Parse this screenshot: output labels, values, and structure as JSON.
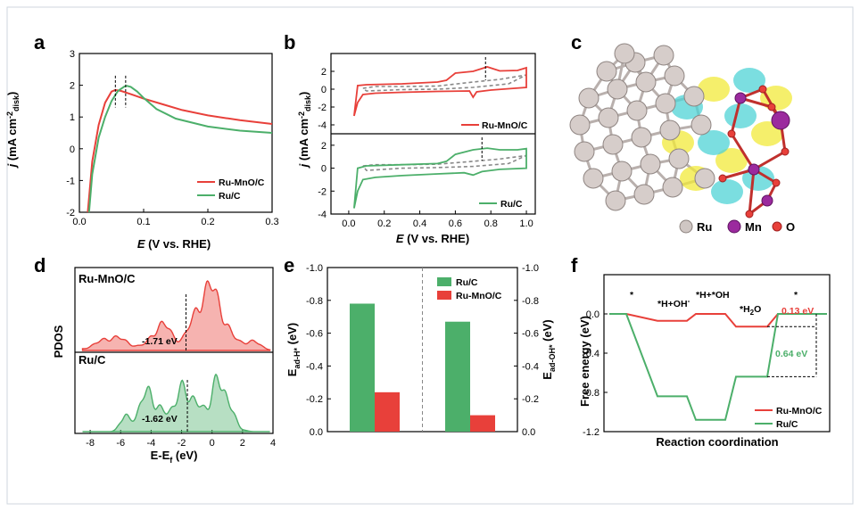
{
  "colors": {
    "red": "#e8403a",
    "green": "#4caf6a",
    "gray": "#888888"
  },
  "chart_data": [
    {
      "panel": "a",
      "type": "line",
      "xlabel": "E (V vs. RHE)",
      "ylabel": "j (mA cm-2 disk)",
      "xlim": [
        0,
        0.3
      ],
      "ylim": [
        -2,
        3
      ],
      "xticks": [
        "0.0",
        "0.1",
        "0.2",
        "0.3"
      ],
      "yticks": [
        "-2",
        "-1",
        "0",
        "1",
        "2",
        "3"
      ],
      "legend": "lower-right",
      "series": [
        {
          "name": "Ru-MnO/C",
          "color": "red",
          "x": [
            0.013,
            0.02,
            0.03,
            0.04,
            0.05,
            0.056,
            0.065,
            0.08,
            0.1,
            0.13,
            0.16,
            0.2,
            0.25,
            0.3
          ],
          "y": [
            -2,
            -0.4,
            0.75,
            1.45,
            1.8,
            1.85,
            1.82,
            1.72,
            1.58,
            1.4,
            1.22,
            1.05,
            0.9,
            0.78
          ]
        },
        {
          "name": "Ru/C",
          "color": "green",
          "x": [
            0.015,
            0.02,
            0.03,
            0.04,
            0.05,
            0.06,
            0.07,
            0.074,
            0.08,
            0.09,
            0.1,
            0.12,
            0.15,
            0.2,
            0.25,
            0.3
          ],
          "y": [
            -2,
            -0.8,
            0.35,
            1.0,
            1.5,
            1.82,
            1.96,
            1.98,
            1.95,
            1.8,
            1.6,
            1.25,
            0.95,
            0.7,
            0.57,
            0.5
          ]
        }
      ],
      "markers": [
        0.056,
        0.072
      ]
    },
    {
      "panel": "b",
      "type": "line",
      "xlabel": "E (V vs. RHE)",
      "ylabel": "j (mA cm-2 disk)",
      "xlim": [
        -0.1,
        1.05
      ],
      "xticks": [
        "0.0",
        "0.2",
        "0.4",
        "0.6",
        "0.8",
        "1.0"
      ],
      "sub": [
        {
          "name": "Ru-MnO/C",
          "ylim": [
            -5,
            4
          ],
          "yticks": [
            "-4",
            "-2",
            "0",
            "2"
          ],
          "legend": "lower-right",
          "marker": 0.77,
          "loop": [
            [
              0.03,
              -3
            ],
            [
              0.05,
              -1.5
            ],
            [
              0.08,
              -0.6
            ],
            [
              0.15,
              -0.45
            ],
            [
              0.3,
              -0.35
            ],
            [
              0.5,
              -0.25
            ],
            [
              0.68,
              -0.2
            ],
            [
              0.7,
              -0.9
            ],
            [
              0.72,
              -0.3
            ],
            [
              0.8,
              -0.1
            ],
            [
              0.9,
              0.05
            ],
            [
              1.0,
              0.2
            ],
            [
              1.0,
              2.4
            ],
            [
              0.95,
              2.1
            ],
            [
              0.85,
              2.05
            ],
            [
              0.78,
              2.5
            ],
            [
              0.7,
              2.0
            ],
            [
              0.6,
              1.8
            ],
            [
              0.55,
              1.0
            ],
            [
              0.5,
              0.8
            ],
            [
              0.3,
              0.6
            ],
            [
              0.1,
              0.5
            ],
            [
              0.05,
              0.4
            ],
            [
              0.03,
              -3
            ]
          ],
          "dashed": [
            [
              0.08,
              0.1
            ],
            [
              0.15,
              0.3
            ],
            [
              0.3,
              0.3
            ],
            [
              0.5,
              0.35
            ],
            [
              0.7,
              0.8
            ],
            [
              0.85,
              1.1
            ],
            [
              1.0,
              1.6
            ],
            [
              0.9,
              0.6
            ],
            [
              0.7,
              0.2
            ],
            [
              0.5,
              0.0
            ],
            [
              0.3,
              -0.05
            ],
            [
              0.1,
              -0.2
            ],
            [
              0.08,
              0.1
            ]
          ]
        },
        {
          "name": "Ru/C",
          "ylim": [
            -4,
            3
          ],
          "yticks": [
            "-4",
            "-2",
            "0",
            "2"
          ],
          "legend": "lower-right",
          "marker": 0.75,
          "loop": [
            [
              0.03,
              -3.5
            ],
            [
              0.05,
              -2.0
            ],
            [
              0.08,
              -1.0
            ],
            [
              0.15,
              -0.8
            ],
            [
              0.3,
              -0.65
            ],
            [
              0.5,
              -0.5
            ],
            [
              0.65,
              -0.4
            ],
            [
              0.7,
              -0.6
            ],
            [
              0.75,
              -0.3
            ],
            [
              0.85,
              -0.1
            ],
            [
              1.0,
              0.0
            ],
            [
              1.0,
              1.7
            ],
            [
              0.95,
              1.6
            ],
            [
              0.85,
              1.6
            ],
            [
              0.78,
              1.75
            ],
            [
              0.7,
              1.6
            ],
            [
              0.6,
              1.2
            ],
            [
              0.55,
              0.6
            ],
            [
              0.5,
              0.4
            ],
            [
              0.3,
              0.3
            ],
            [
              0.1,
              0.2
            ],
            [
              0.05,
              0.0
            ],
            [
              0.03,
              -3.5
            ]
          ],
          "dashed": [
            [
              0.08,
              0.2
            ],
            [
              0.15,
              0.3
            ],
            [
              0.3,
              0.3
            ],
            [
              0.5,
              0.35
            ],
            [
              0.7,
              0.6
            ],
            [
              0.85,
              0.8
            ],
            [
              1.0,
              1.1
            ],
            [
              0.9,
              0.4
            ],
            [
              0.7,
              0.15
            ],
            [
              0.5,
              0.05
            ],
            [
              0.3,
              0.0
            ],
            [
              0.1,
              -0.2
            ],
            [
              0.08,
              0.2
            ]
          ]
        }
      ]
    },
    {
      "panel": "d",
      "type": "area",
      "xlabel": "E-Ef (eV)",
      "ylabel": "PDOS",
      "xlim": [
        -9,
        4
      ],
      "xticks": [
        "-8",
        "-6",
        "-4",
        "-2",
        "0",
        "2",
        "4"
      ],
      "series": [
        {
          "name": "Ru-MnO/C",
          "color": "red",
          "center": "-1.71 eV"
        },
        {
          "name": "Ru/C",
          "color": "green",
          "center": "-1.62 eV"
        }
      ]
    },
    {
      "panel": "e",
      "type": "bar",
      "ylabel_left": "Ead-H* (eV)",
      "ylabel_right": "Ead-OH* (eV)",
      "ylim": [
        0,
        -1.0
      ],
      "yticks": [
        "0.0",
        "-0.2",
        "-0.4",
        "-0.6",
        "-0.8",
        "-1.0"
      ],
      "series": [
        {
          "name": "Ru/C",
          "color": "green",
          "values": [
            -0.78,
            -0.67
          ]
        },
        {
          "name": "Ru-MnO/C",
          "color": "red",
          "values": [
            -0.24,
            -0.1
          ]
        }
      ]
    },
    {
      "panel": "f",
      "type": "line",
      "xlabel": "Reaction coordination",
      "ylabel": "Free energy (eV)",
      "ylim": [
        -1.2,
        0.4
      ],
      "yticks": [
        "0.0",
        "-0.4",
        "-0.8",
        "-1.2"
      ],
      "states": [
        "*",
        "*H+OH-",
        "*H+*OH",
        "*H2O",
        "*"
      ],
      "series": [
        {
          "name": "Ru-MnO/C",
          "color": "red",
          "values": [
            0,
            -0.07,
            0,
            -0.13,
            0
          ]
        },
        {
          "name": "Ru/C",
          "color": "green",
          "values": [
            0,
            -0.84,
            -1.08,
            -0.64,
            0
          ]
        }
      ],
      "annotations": [
        "0.13 eV",
        "0.64 eV"
      ]
    }
  ],
  "panel_c": {
    "legend": [
      "Ru",
      "Mn",
      "O"
    ]
  },
  "texts": {
    "a": "a",
    "b": "b",
    "c": "c",
    "d": "d",
    "e": "e",
    "f": "f",
    "a_xlabel": "(V vs. RHE)",
    "a_ylabel": "(mA cm",
    "a_ylabel_sup": "-2",
    "a_ylabel_sub": "disk",
    "a_leg1": "Ru-MnO/C",
    "a_leg2": "Ru/C",
    "b_leg1": "Ru-MnO/C",
    "b_leg2": "Ru/C",
    "d_l1": "Ru-MnO/C",
    "d_l2": "Ru/C",
    "d_v1": "-1.71 eV",
    "d_v2": "-1.62 eV",
    "d_ylabel": "PDOS",
    "d_xlabel": "E-E",
    "d_xsub": "f",
    "d_xunit": "(eV)",
    "e_leg1": "Ru/C",
    "e_leg2": "Ru-MnO/C",
    "e_yl_main": "E",
    "e_yl_sub": "ad-H*",
    "e_yr_sub": "ad-OH*",
    "e_unit": "(eV)",
    "f_ylabel": "Free energy (eV)",
    "f_xlabel": "Reaction coordination",
    "f_leg1": "Ru-MnO/C",
    "f_leg2": "Ru/C",
    "f_s1": "*",
    "f_s2": "*H+OH",
    "f_s2sup": "-",
    "f_s3": "*H+*OH",
    "f_s4": "*H",
    "f_s4sub": "2",
    "f_s4b": "O",
    "f_s5": "*",
    "f_a1": "0.13 eV",
    "f_a2": "0.64 eV",
    "c_ru": "Ru",
    "c_mn": "Mn",
    "c_o": "O"
  }
}
